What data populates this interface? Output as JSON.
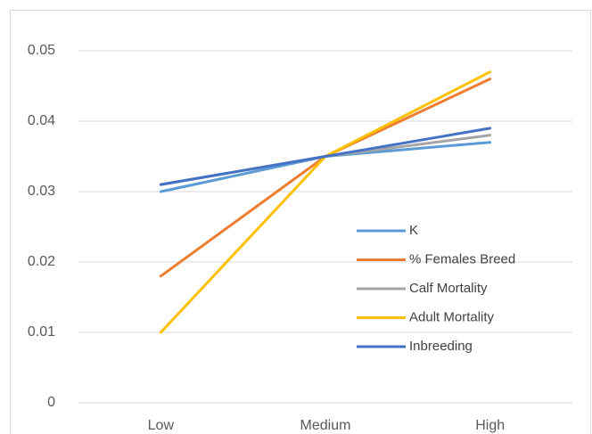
{
  "chart_data": {
    "type": "line",
    "categories": [
      "Low",
      "Medium",
      "High"
    ],
    "series": [
      {
        "name": "K",
        "color": "#5b9bd5",
        "values": [
          0.03,
          0.035,
          0.037
        ]
      },
      {
        "name": "% Females Breed",
        "color": "#ed7d31",
        "values": [
          0.018,
          0.035,
          0.046
        ]
      },
      {
        "name": "Calf Mortality",
        "color": "#a5a5a5",
        "values": [
          0.031,
          0.035,
          0.038
        ]
      },
      {
        "name": "Adult Mortality",
        "color": "#ffc000",
        "values": [
          0.01,
          0.035,
          0.047
        ]
      },
      {
        "name": "Inbreeding",
        "color": "#4472c4",
        "values": [
          0.031,
          0.035,
          0.039
        ]
      }
    ],
    "ylim": [
      0,
      0.05
    ],
    "yticks": [
      0,
      0.01,
      0.02,
      0.03,
      0.04,
      0.05
    ],
    "grid": true
  }
}
